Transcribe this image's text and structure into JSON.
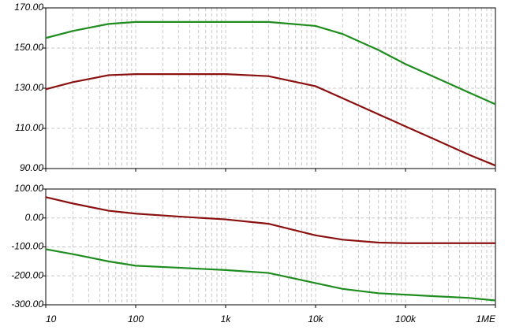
{
  "chart_data": [
    {
      "type": "line",
      "xscale": "log",
      "grid": true,
      "x": [
        10,
        20,
        50,
        100,
        300,
        1000,
        3000,
        10000,
        20000,
        50000,
        100000,
        200000,
        500000,
        1000000
      ],
      "xlim": [
        10,
        1000000
      ],
      "xticks": [
        10,
        100,
        1000,
        10000,
        100000,
        1000000
      ],
      "ylim": [
        90,
        170
      ],
      "yticks": [
        {
          "value": 90,
          "label": "90.00"
        },
        {
          "value": 110,
          "label": "110.00"
        },
        {
          "value": 130,
          "label": "130.00"
        },
        {
          "value": 150,
          "label": "150.00"
        },
        {
          "value": 170,
          "label": "170.00"
        }
      ],
      "series": [
        {
          "color": "#1e8c1e",
          "values": [
            155,
            158.5,
            162,
            163,
            163,
            163,
            163,
            161,
            157,
            149,
            142,
            136,
            128,
            122
          ]
        },
        {
          "color": "#8b1010",
          "values": [
            129.5,
            133,
            136.5,
            137,
            137,
            137,
            136,
            131,
            125,
            117,
            111,
            105,
            97,
            91.5
          ]
        }
      ]
    },
    {
      "type": "line",
      "xscale": "log",
      "grid": true,
      "x": [
        10,
        20,
        50,
        100,
        300,
        1000,
        3000,
        10000,
        20000,
        50000,
        100000,
        200000,
        500000,
        1000000
      ],
      "xlim": [
        10,
        1000000
      ],
      "xticks": [
        {
          "value": 10,
          "label": "10"
        },
        {
          "value": 100,
          "label": "100"
        },
        {
          "value": 1000,
          "label": "1k"
        },
        {
          "value": 10000,
          "label": "10k"
        },
        {
          "value": 100000,
          "label": "100k"
        },
        {
          "value": 1000000,
          "label": "1ME"
        }
      ],
      "ylim": [
        -300,
        100
      ],
      "yticks": [
        {
          "value": -300,
          "label": "-300.00"
        },
        {
          "value": -200,
          "label": "-200.00"
        },
        {
          "value": -100,
          "label": "-100.00"
        },
        {
          "value": 0,
          "label": "0.00"
        },
        {
          "value": 100,
          "label": "100.00"
        }
      ],
      "series": [
        {
          "color": "#8b1010",
          "values": [
            72,
            50,
            25,
            15,
            5,
            -5,
            -20,
            -60,
            -75,
            -85,
            -87,
            -87,
            -87,
            -87
          ]
        },
        {
          "color": "#1e8c1e",
          "values": [
            -108,
            -125,
            -150,
            -165,
            -172,
            -180,
            -190,
            -225,
            -245,
            -260,
            -265,
            -270,
            -276,
            -285
          ]
        }
      ]
    }
  ]
}
